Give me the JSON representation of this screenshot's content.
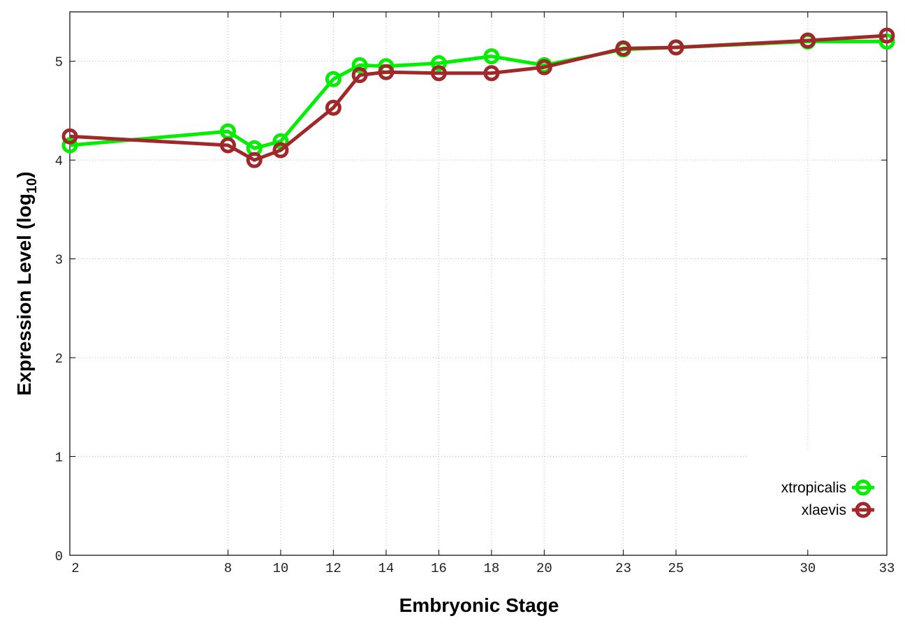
{
  "chart_data": {
    "type": "line",
    "xlabel": "Embryonic Stage",
    "ylabel": "Expression Level (log",
    "ylabel_sub": "10",
    "ylabel_end": ")",
    "x": [
      2,
      8,
      9,
      10,
      12,
      13,
      14,
      16,
      18,
      20,
      23,
      25,
      30,
      33
    ],
    "xticks": [
      2,
      8,
      10,
      12,
      14,
      16,
      18,
      20,
      23,
      25,
      30,
      33
    ],
    "yticks": [
      0,
      1,
      2,
      3,
      4,
      5
    ],
    "xlim": [
      2,
      33
    ],
    "ylim": [
      0,
      5.5
    ],
    "grid": true,
    "legend_position": "bottom-right",
    "series": [
      {
        "name": "xtropicalis",
        "color": "#00ee00",
        "values": [
          4.15,
          4.29,
          4.12,
          4.19,
          4.82,
          4.96,
          4.95,
          4.98,
          5.05,
          4.96,
          5.12,
          5.14,
          5.2,
          5.2
        ]
      },
      {
        "name": "xlaevis",
        "color": "#a0282a",
        "values": [
          4.24,
          4.15,
          4.0,
          4.1,
          4.53,
          4.86,
          4.89,
          4.88,
          4.88,
          4.94,
          5.13,
          5.14,
          5.21,
          5.26
        ]
      }
    ]
  }
}
